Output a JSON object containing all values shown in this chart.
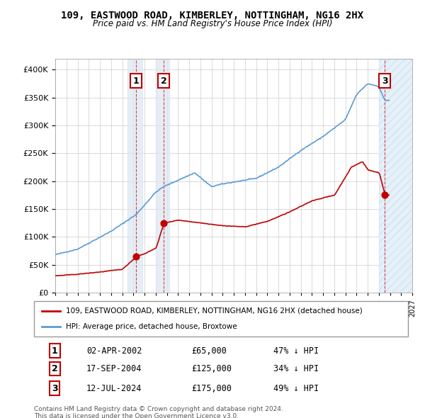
{
  "title": "109, EASTWOOD ROAD, KIMBERLEY, NOTTINGHAM, NG16 2HX",
  "subtitle": "Price paid vs. HM Land Registry's House Price Index (HPI)",
  "legend_line1": "109, EASTWOOD ROAD, KIMBERLEY, NOTTINGHAM, NG16 2HX (detached house)",
  "legend_line2": "HPI: Average price, detached house, Broxtowe",
  "footer_line1": "Contains HM Land Registry data © Crown copyright and database right 2024.",
  "footer_line2": "This data is licensed under the Open Government Licence v3.0.",
  "transactions": [
    {
      "num": 1,
      "date": "02-APR-2002",
      "price": 65000,
      "pct": "47%",
      "dir": "↓",
      "year": 2002.25
    },
    {
      "num": 2,
      "date": "17-SEP-2004",
      "price": 125000,
      "pct": "34%",
      "dir": "↓",
      "year": 2004.71
    },
    {
      "num": 3,
      "date": "12-JUL-2024",
      "price": 175000,
      "pct": "49%",
      "dir": "↓",
      "year": 2024.53
    }
  ],
  "hpi_color": "#5b9bd5",
  "price_color": "#c00000",
  "shade_color": "#dce6f1",
  "hatch_color": "#5b9bd5",
  "ylim": [
    0,
    420000
  ],
  "yticks": [
    0,
    50000,
    100000,
    150000,
    200000,
    250000,
    300000,
    350000,
    400000
  ],
  "year_start": 1995,
  "year_end": 2027
}
